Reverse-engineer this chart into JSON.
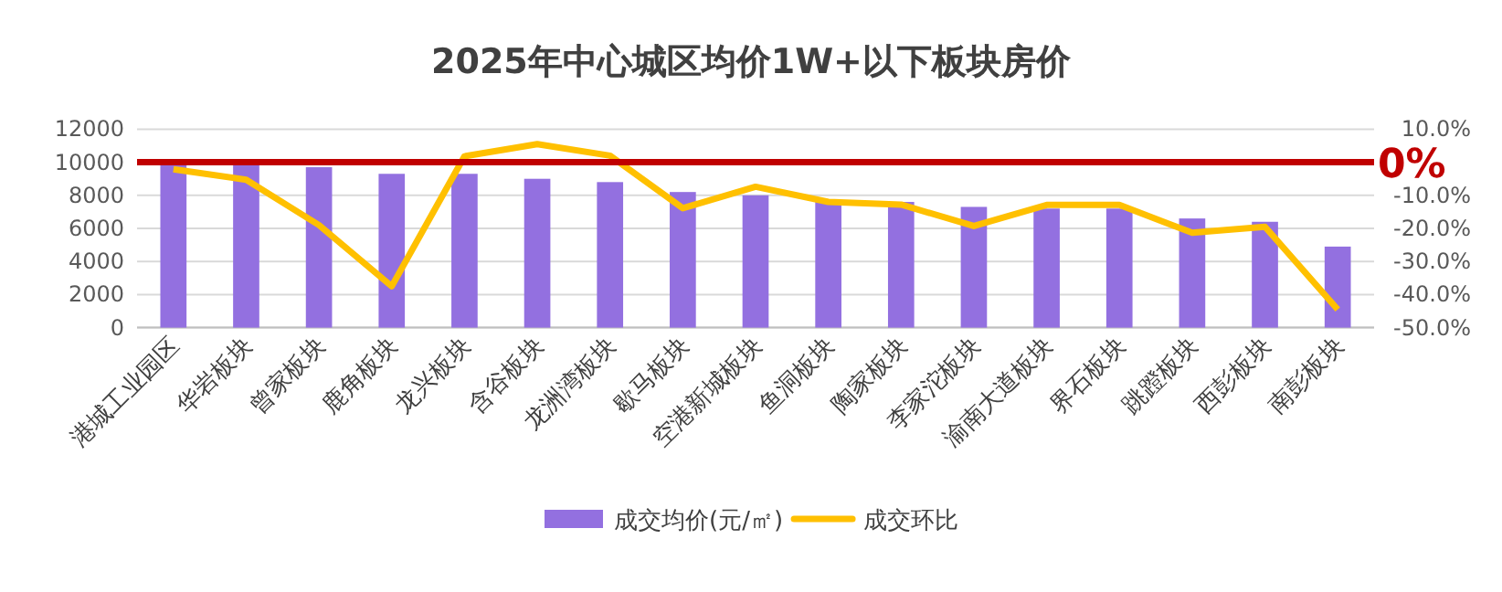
{
  "chart_data": {
    "type": "bar",
    "title": "2025年中心城区均价1W+以下板块房价",
    "categories": [
      "港城工业园区",
      "华岩板块",
      "曾家板块",
      "鹿角板块",
      "龙兴板块",
      "含谷板块",
      "龙洲湾板块",
      "歇马板块",
      "空港新城板块",
      "鱼洞板块",
      "陶家板块",
      "李家沱板块",
      "渝南大道板块",
      "界石板块",
      "跳蹬板块",
      "西彭板块",
      "南彭板块"
    ],
    "series": [
      {
        "name": "成交均价(元/㎡)",
        "color": "#9370e0",
        "values": [
          10000,
          10000,
          9700,
          9300,
          9300,
          9000,
          8800,
          8200,
          8000,
          7700,
          7600,
          7300,
          7200,
          7200,
          6600,
          6400,
          4900
        ]
      },
      {
        "name": "成交环比",
        "type": "line",
        "axis": "y2",
        "color": "#ffc000",
        "values": [
          -2.1,
          -5.3,
          -19,
          -37.5,
          1.8,
          5.5,
          2,
          -13.9,
          -7.4,
          -12,
          -12.8,
          -19.3,
          -12.9,
          -12.9,
          -21.3,
          -19.5,
          -44.5
        ]
      }
    ],
    "ylim": [
      0,
      12000
    ],
    "yticks": [
      0,
      2000,
      4000,
      6000,
      8000,
      10000,
      12000
    ],
    "y2lim": [
      -50,
      10
    ],
    "y2ticks": [
      {
        "value": -50,
        "label": "-50.0%"
      },
      {
        "value": -40,
        "label": "-40.0%"
      },
      {
        "value": -30,
        "label": "-30.0%"
      },
      {
        "value": -20,
        "label": "-20.0%"
      },
      {
        "value": -10,
        "label": "-10.0%"
      },
      {
        "value": 0,
        "label": null
      },
      {
        "value": 10,
        "label": "10.0%"
      }
    ],
    "ref_lines": [
      {
        "axis": "y2",
        "value": 0,
        "label": "0%",
        "color": "#c00000"
      }
    ],
    "grid": "y",
    "legend": "bottom",
    "marker": "none"
  }
}
